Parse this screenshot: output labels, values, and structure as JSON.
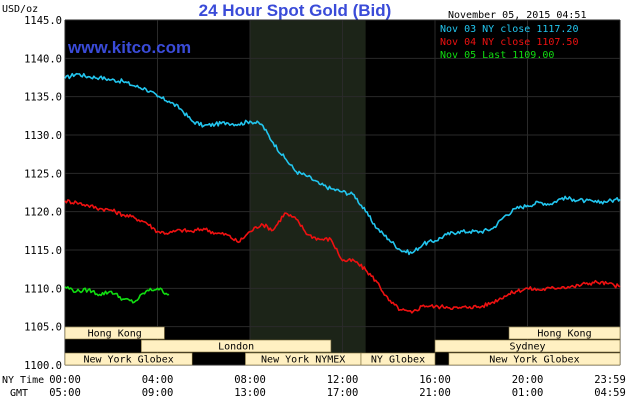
{
  "chart_data": {
    "type": "line",
    "title": "24 Hour Spot Gold (Bid)",
    "website": "www.kitco.com",
    "ylabel": "USD/oz",
    "timestamp": "November 05, 2015 04:51",
    "ylim": [
      1100.0,
      1145.0
    ],
    "y_ticks": [
      "1145.0",
      "1140.0",
      "1135.0",
      "1130.0",
      "1125.0",
      "1120.0",
      "1115.0",
      "1110.0",
      "1105.0",
      "1100.0"
    ],
    "x_hours_range": [
      0,
      24
    ],
    "x_row_labels": {
      "ny": "NY Time",
      "gmt": "GMT"
    },
    "x_ticks_ny": [
      "00:00",
      "04:00",
      "08:00",
      "12:00",
      "16:00",
      "20:00",
      "23:59"
    ],
    "x_ticks_gmt": [
      "05:00",
      "09:00",
      "13:00",
      "17:00",
      "21:00",
      "01:00",
      "04:59"
    ],
    "highlight_band_hours": [
      8,
      13
    ],
    "legend_placement": "top-right",
    "series": [
      {
        "name": "Nov 03 NY close 1117.20",
        "color": "#22c5ee",
        "points": [
          [
            0,
            1137.4
          ],
          [
            0.5,
            1138.0
          ],
          [
            1,
            1137.6
          ],
          [
            1.5,
            1137.5
          ],
          [
            2,
            1137.2
          ],
          [
            2.5,
            1137.0
          ],
          [
            3,
            1136.4
          ],
          [
            3.5,
            1136.0
          ],
          [
            4,
            1135.0
          ],
          [
            4.5,
            1134.4
          ],
          [
            5,
            1133.4
          ],
          [
            5.5,
            1131.8
          ],
          [
            6,
            1131.2
          ],
          [
            6.5,
            1131.4
          ],
          [
            7,
            1131.6
          ],
          [
            7.5,
            1131.4
          ],
          [
            8,
            1131.8
          ],
          [
            8.5,
            1131.4
          ],
          [
            9,
            1129.0
          ],
          [
            9.5,
            1127.0
          ],
          [
            10,
            1125.2
          ],
          [
            10.5,
            1124.6
          ],
          [
            11,
            1123.6
          ],
          [
            11.5,
            1123.0
          ],
          [
            12,
            1122.6
          ],
          [
            12.5,
            1122.2
          ],
          [
            13,
            1120.0
          ],
          [
            13.5,
            1117.8
          ],
          [
            14,
            1116.4
          ],
          [
            14.5,
            1115.0
          ],
          [
            15,
            1114.6
          ],
          [
            15.5,
            1115.8
          ],
          [
            16,
            1116.2
          ],
          [
            16.5,
            1117.0
          ],
          [
            17,
            1117.4
          ],
          [
            17.5,
            1117.4
          ],
          [
            18,
            1117.4
          ],
          [
            18.5,
            1117.8
          ],
          [
            19,
            1119.4
          ],
          [
            19.5,
            1120.4
          ],
          [
            20,
            1120.8
          ],
          [
            20.5,
            1121.2
          ],
          [
            21,
            1121.0
          ],
          [
            21.5,
            1121.8
          ],
          [
            22,
            1121.6
          ],
          [
            22.5,
            1121.4
          ],
          [
            23,
            1121.2
          ],
          [
            23.5,
            1121.4
          ],
          [
            24,
            1121.6
          ]
        ]
      },
      {
        "name": "Nov 04 NY close 1107.50",
        "color": "#ee1111",
        "points": [
          [
            0,
            1121.4
          ],
          [
            0.5,
            1121.2
          ],
          [
            1,
            1120.8
          ],
          [
            1.5,
            1120.4
          ],
          [
            2,
            1120.2
          ],
          [
            2.5,
            1119.6
          ],
          [
            3,
            1119.2
          ],
          [
            3.5,
            1118.6
          ],
          [
            4,
            1117.4
          ],
          [
            4.5,
            1117.2
          ],
          [
            5,
            1117.6
          ],
          [
            5.5,
            1117.4
          ],
          [
            6,
            1117.8
          ],
          [
            6.5,
            1117.2
          ],
          [
            7,
            1117.0
          ],
          [
            7.5,
            1116.0
          ],
          [
            8,
            1117.4
          ],
          [
            8.5,
            1118.4
          ],
          [
            9,
            1117.6
          ],
          [
            9.5,
            1119.8
          ],
          [
            10,
            1119.0
          ],
          [
            10.5,
            1117.0
          ],
          [
            11,
            1116.4
          ],
          [
            11.5,
            1116.4
          ],
          [
            12,
            1113.6
          ],
          [
            12.5,
            1113.6
          ],
          [
            13,
            1112.4
          ],
          [
            13.5,
            1110.8
          ],
          [
            14,
            1108.4
          ],
          [
            14.5,
            1107.2
          ],
          [
            15,
            1106.8
          ],
          [
            15.5,
            1107.8
          ],
          [
            16,
            1107.6
          ],
          [
            16.5,
            1107.6
          ],
          [
            17,
            1107.4
          ],
          [
            17.5,
            1107.6
          ],
          [
            18,
            1107.6
          ],
          [
            18.5,
            1108.2
          ],
          [
            19,
            1109.0
          ],
          [
            19.5,
            1109.6
          ],
          [
            20,
            1110.0
          ],
          [
            20.5,
            1109.8
          ],
          [
            21,
            1110.0
          ],
          [
            21.5,
            1110.2
          ],
          [
            22,
            1110.2
          ],
          [
            22.5,
            1110.6
          ],
          [
            23,
            1110.8
          ],
          [
            23.5,
            1110.6
          ],
          [
            24,
            1110.2
          ]
        ]
      },
      {
        "name": "Nov 05 Last 1109.00",
        "color": "#11dd11",
        "points": [
          [
            0,
            1110.2
          ],
          [
            0.5,
            1109.6
          ],
          [
            1,
            1109.8
          ],
          [
            1.5,
            1109.2
          ],
          [
            2,
            1109.6
          ],
          [
            2.5,
            1108.6
          ],
          [
            3,
            1108.2
          ],
          [
            3.5,
            1109.6
          ],
          [
            4,
            1110.0
          ],
          [
            4.5,
            1109.2
          ]
        ]
      }
    ],
    "sessions": [
      {
        "label": "Hong Kong",
        "row": 0,
        "start": 0,
        "end": 4.3
      },
      {
        "label": "Hong Kong",
        "row": 0,
        "start": 19.2,
        "end": 24
      },
      {
        "label": "London",
        "row": 1,
        "start": 3.3,
        "end": 11.5
      },
      {
        "label": "Sydney",
        "row": 1,
        "start": 16.0,
        "end": 24
      },
      {
        "label": "New York Globex",
        "row": 2,
        "start": 0,
        "end": 5.5
      },
      {
        "label": "New York NYMEX",
        "row": 2,
        "start": 7.8,
        "end": 12.8
      },
      {
        "label": "NY Globex",
        "row": 2,
        "start": 12.8,
        "end": 16.0
      },
      {
        "label": "New York Globex",
        "row": 2,
        "start": 16.6,
        "end": 24
      }
    ]
  },
  "colors": {
    "plot_background": "#000000",
    "highlight_band": "#1c2418",
    "gridline": "#2a2a2a",
    "session_box": "#fff0c2",
    "title": "#3a4bd8"
  }
}
